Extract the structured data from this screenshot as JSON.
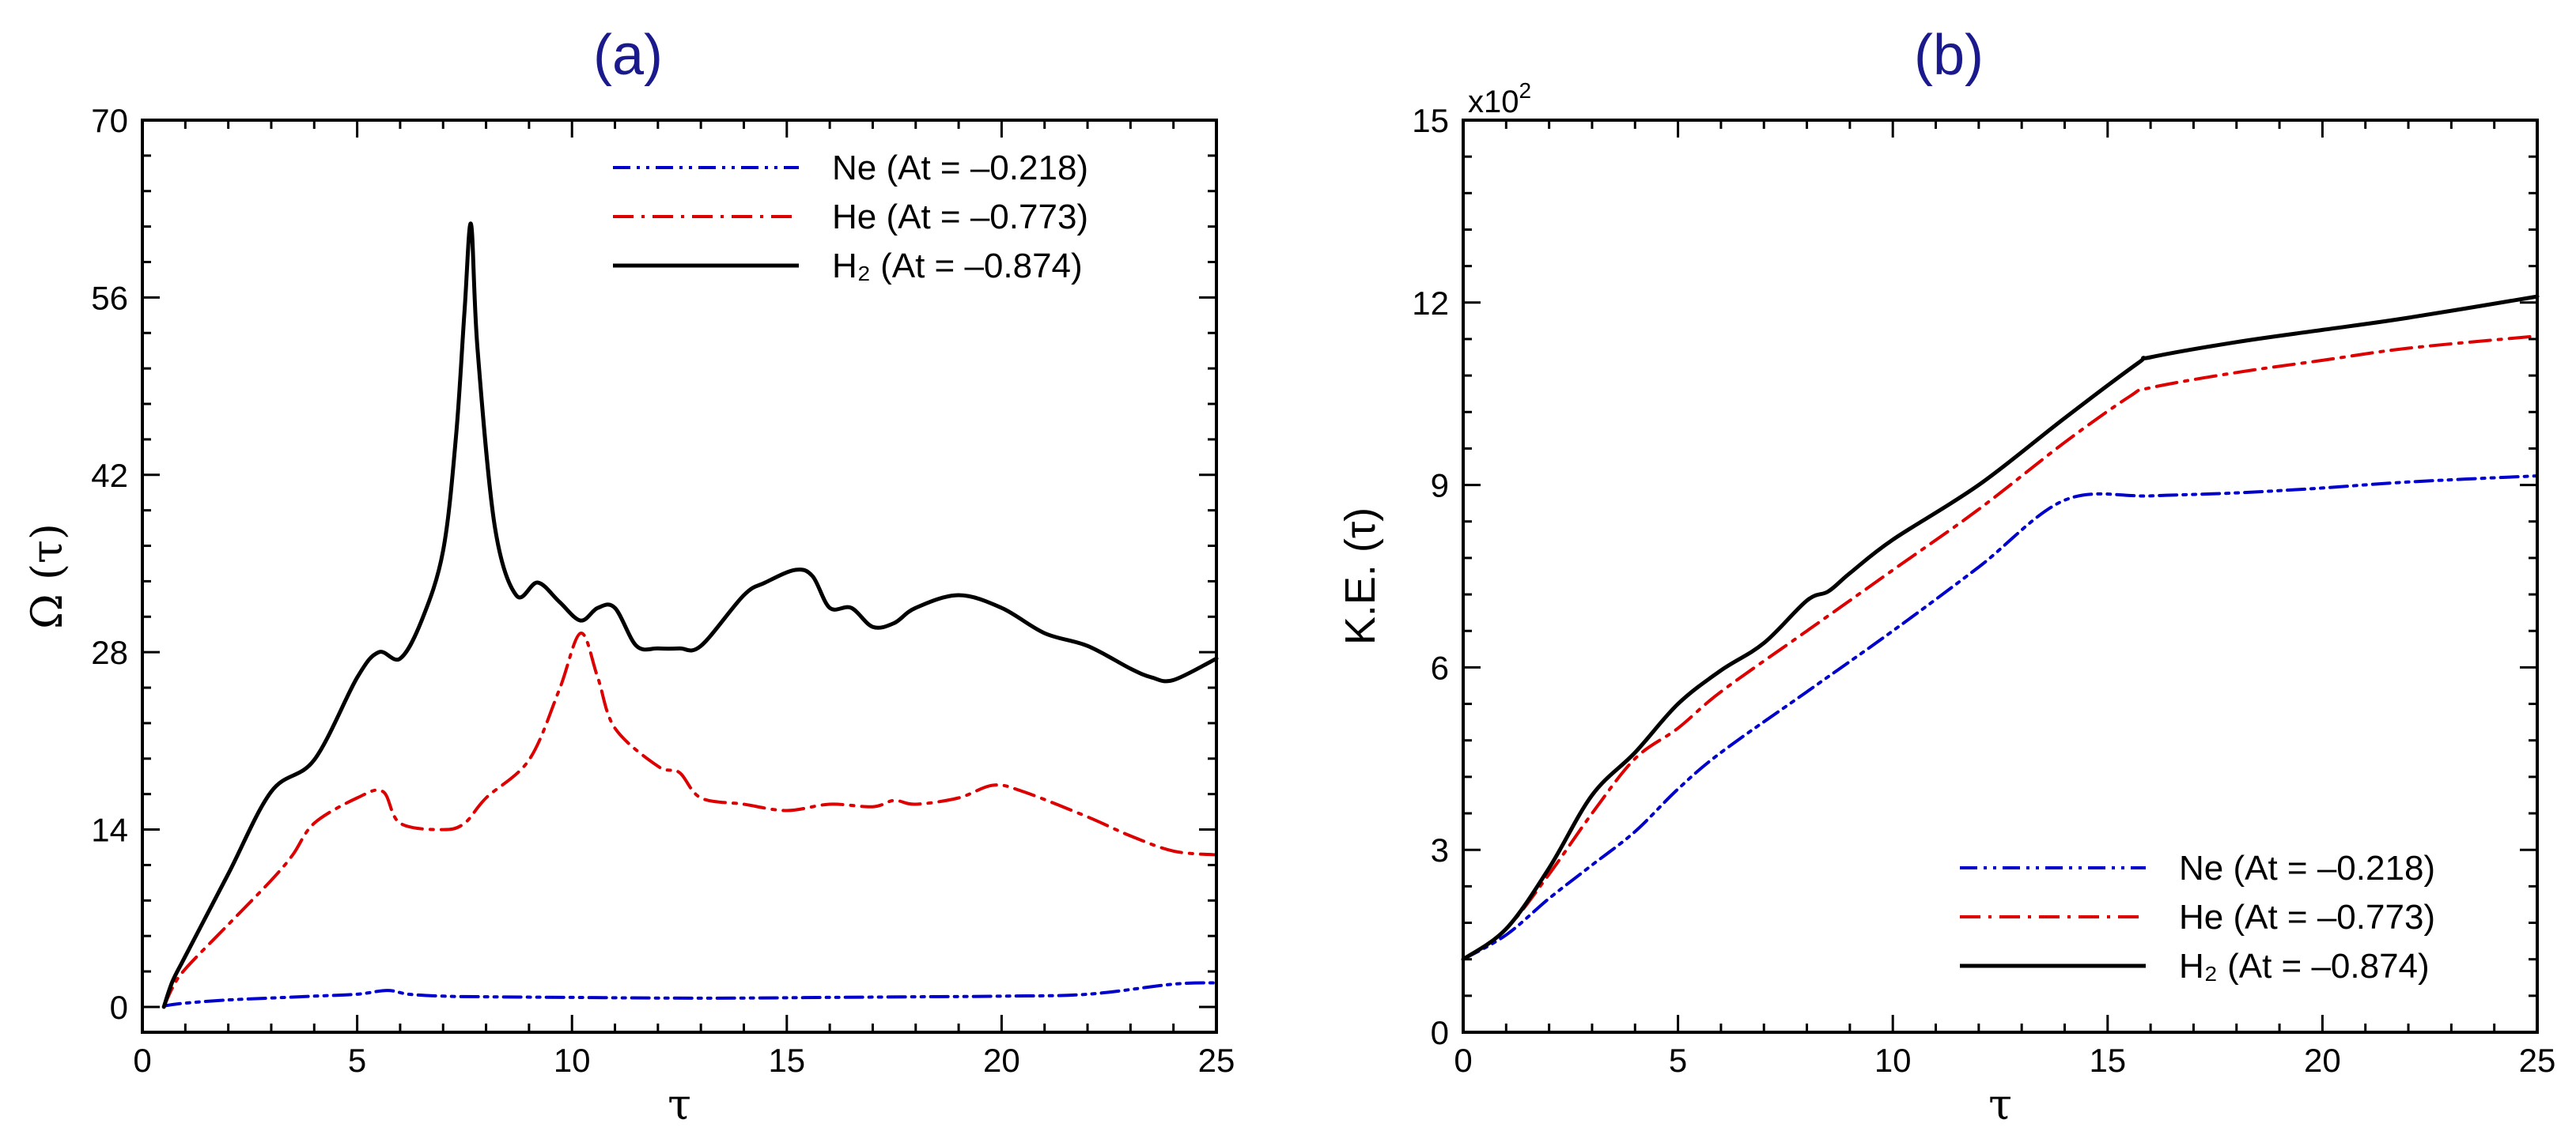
{
  "colors": {
    "ne": "#0000cc",
    "he": "#dd0000",
    "h2": "#000000",
    "title": "#1a1a8c"
  },
  "chart_data": [
    {
      "type": "line",
      "title": "(a)",
      "xlabel": "τ",
      "ylabel": "Ω (τ)",
      "xlim": [
        0,
        25
      ],
      "ylim": [
        -2,
        70
      ],
      "xticks": [
        "0",
        "5",
        "10",
        "15",
        "20",
        "25"
      ],
      "yticks": [
        "0",
        "14",
        "28",
        "42",
        "56",
        "70"
      ],
      "legend_position": "top-right",
      "series": [
        {
          "name": "Ne (At = –0.218)",
          "color_key": "ne",
          "dash": "dashdotdot",
          "x": [
            0.5,
            0.55,
            1,
            2,
            3,
            4,
            5,
            5.7,
            6.2,
            7,
            8,
            10,
            12,
            14,
            16,
            18,
            20,
            22,
            24,
            25
          ],
          "y": [
            0,
            0.1,
            0.3,
            0.55,
            0.7,
            0.85,
            1.0,
            1.3,
            1.0,
            0.85,
            0.8,
            0.75,
            0.7,
            0.7,
            0.75,
            0.8,
            0.85,
            1.0,
            1.8,
            1.9
          ]
        },
        {
          "name": "He (At = –0.773)",
          "color_key": "he",
          "dash": "dashdot",
          "x": [
            0.5,
            0.7,
            1,
            2,
            3,
            3.5,
            4,
            5,
            5.6,
            6,
            7,
            7.5,
            8,
            9,
            9.7,
            10.2,
            10.6,
            11,
            12,
            12.5,
            13,
            14,
            15,
            16,
            17,
            17.5,
            18,
            19,
            19.8,
            20.5,
            22,
            23,
            24,
            25
          ],
          "y": [
            0,
            1.5,
            3,
            6.5,
            10,
            12,
            14.5,
            16.5,
            17,
            14.5,
            14,
            14.5,
            16.5,
            19.5,
            25,
            29.5,
            26,
            22,
            19,
            18.5,
            16.5,
            16,
            15.5,
            16,
            15.8,
            16.3,
            16,
            16.5,
            17.5,
            17,
            15,
            13.5,
            12.3,
            12
          ]
        },
        {
          "name": "H₂ (At = –0.874)",
          "color_key": "h2",
          "dash": "solid",
          "x": [
            0.5,
            0.7,
            1,
            2,
            3,
            4,
            5,
            5.5,
            6,
            6.5,
            7,
            7.3,
            7.5,
            7.65,
            7.8,
            8.2,
            8.7,
            9.2,
            9.7,
            10.2,
            10.6,
            11,
            11.5,
            12,
            12.5,
            13,
            14,
            14.5,
            15.2,
            15.6,
            16,
            16.5,
            17,
            17.5,
            18,
            19,
            20,
            21,
            22,
            23,
            23.5,
            24,
            25
          ],
          "y": [
            0,
            2,
            4,
            10.5,
            17,
            19.5,
            26,
            28,
            27.5,
            30.5,
            36,
            45,
            55,
            61.8,
            52,
            38,
            32.5,
            33.5,
            32,
            30.5,
            31.5,
            31.5,
            28.5,
            28.3,
            28.3,
            28.5,
            32.5,
            33.5,
            34.5,
            34,
            31.5,
            31.5,
            30,
            30.3,
            31.5,
            32.5,
            31.5,
            29.5,
            28.5,
            26.7,
            26,
            25.8,
            27.5
          ]
        }
      ]
    },
    {
      "type": "line",
      "title": "(b)",
      "xlabel": "τ",
      "ylabel": "K.E. (τ)",
      "multiplier_label": "x10",
      "multiplier_exponent": "2",
      "xlim": [
        0,
        25
      ],
      "ylim": [
        0,
        15
      ],
      "xticks": [
        "0",
        "5",
        "10",
        "15",
        "20",
        "25"
      ],
      "yticks": [
        "0",
        "3",
        "6",
        "9",
        "12",
        "15"
      ],
      "legend_position": "bottom-right",
      "series": [
        {
          "name": "Ne (At = –0.218)",
          "color_key": "ne",
          "dash": "dashdotdot",
          "x": [
            0,
            1,
            2,
            3,
            4,
            5,
            6,
            8,
            10,
            12,
            14,
            16,
            18,
            20,
            22,
            25
          ],
          "y": [
            1.2,
            1.6,
            2.2,
            2.75,
            3.3,
            4.0,
            4.6,
            5.6,
            6.6,
            7.65,
            8.75,
            8.82,
            8.87,
            8.95,
            9.05,
            9.15
          ]
        },
        {
          "name": "He (At = –0.773)",
          "color_key": "he",
          "dash": "dashdot",
          "x": [
            0,
            1,
            2,
            3,
            4,
            5,
            6,
            8,
            10,
            12,
            14,
            15.5,
            16,
            18,
            20,
            22,
            25
          ],
          "y": [
            1.2,
            1.7,
            2.6,
            3.6,
            4.5,
            5.0,
            5.6,
            6.6,
            7.6,
            8.6,
            9.7,
            10.45,
            10.6,
            10.85,
            11.05,
            11.25,
            11.45
          ]
        },
        {
          "name": "H₂ (At = –0.874)",
          "color_key": "h2",
          "dash": "solid",
          "x": [
            0,
            1,
            2,
            3,
            4,
            5,
            6,
            7,
            8,
            8.5,
            9,
            10,
            12,
            14,
            15.7,
            16,
            18,
            20,
            22,
            25
          ],
          "y": [
            1.2,
            1.7,
            2.7,
            3.9,
            4.6,
            5.4,
            5.95,
            6.4,
            7.1,
            7.25,
            7.55,
            8.1,
            9.0,
            10.1,
            11.0,
            11.1,
            11.35,
            11.55,
            11.75,
            12.1
          ]
        }
      ]
    }
  ]
}
